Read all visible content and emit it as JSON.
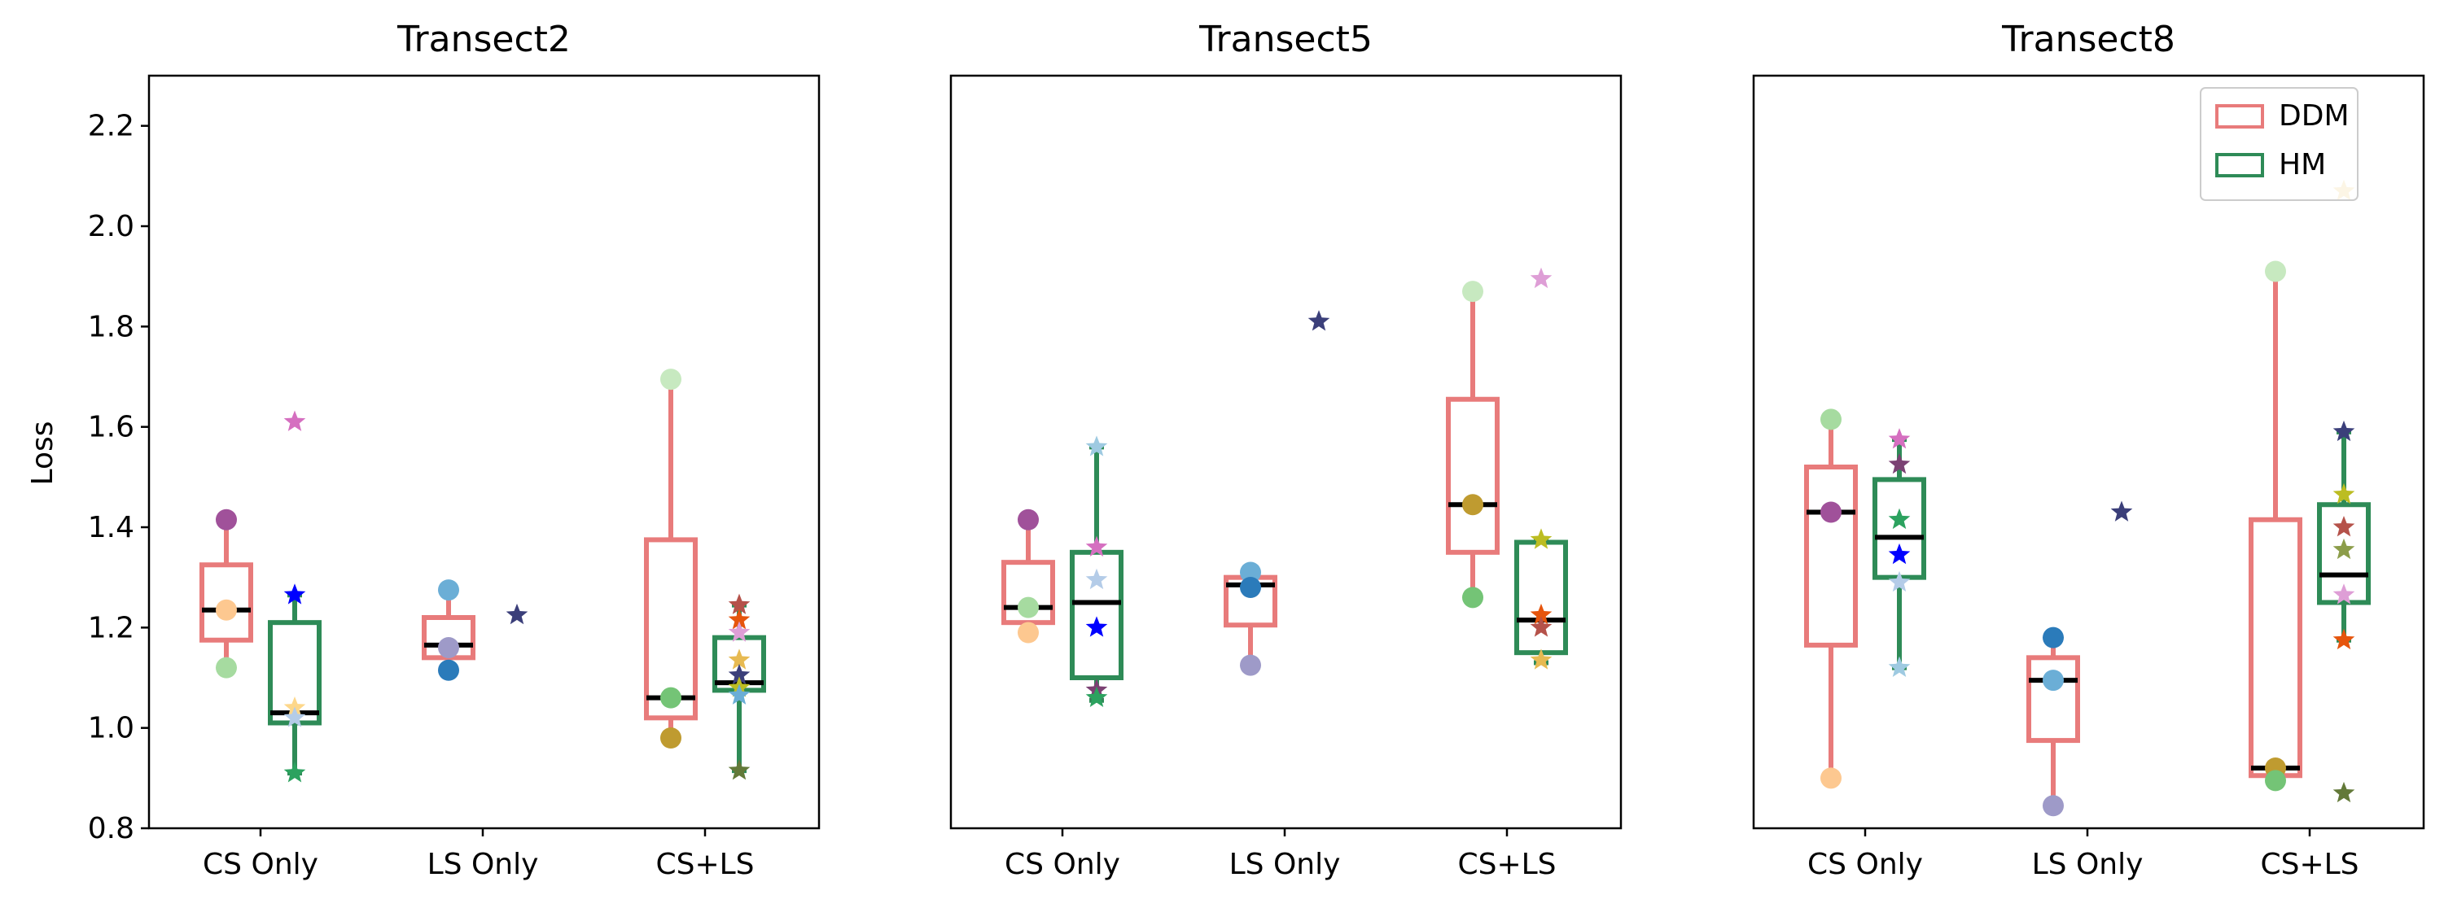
{
  "figure": {
    "ylabel": "Loss",
    "ylim": [
      0.8,
      2.3
    ],
    "yticks": [
      "0.8",
      "1.0",
      "1.2",
      "1.4",
      "1.6",
      "1.8",
      "2.0",
      "2.2"
    ],
    "categories": [
      "CS Only",
      "LS Only",
      "CS+LS"
    ]
  },
  "legend": {
    "position": "upper-right",
    "items": [
      {
        "label": "DDM",
        "color": "#e87b7b"
      },
      {
        "label": "HM",
        "color": "#2e8b57"
      }
    ]
  },
  "chart_data": [
    {
      "type": "box",
      "title": "Transect2",
      "categories": [
        "CS Only",
        "LS Only",
        "CS+LS"
      ],
      "ylim": [
        0.8,
        2.3
      ],
      "series": [
        {
          "name": "DDM",
          "color": "#e87b7b",
          "boxes": [
            {
              "category": "CS Only",
              "whislo": 1.12,
              "q1": 1.175,
              "med": 1.235,
              "q3": 1.325,
              "whishi": 1.415
            },
            {
              "category": "LS Only",
              "whislo": 1.12,
              "q1": 1.14,
              "med": 1.165,
              "q3": 1.22,
              "whishi": 1.275
            },
            {
              "category": "CS+LS",
              "whislo": 0.98,
              "q1": 1.02,
              "med": 1.06,
              "q3": 1.375,
              "whishi": 1.695
            }
          ]
        },
        {
          "name": "HM",
          "color": "#2e8b57",
          "boxes": [
            {
              "category": "CS Only",
              "whislo": 0.91,
              "q1": 1.01,
              "med": 1.03,
              "q3": 1.21,
              "whishi": 1.265
            },
            {
              "category": "CS+LS",
              "whislo": 0.915,
              "q1": 1.075,
              "med": 1.09,
              "q3": 1.18,
              "whishi": 1.245
            }
          ]
        }
      ],
      "points": [
        {
          "category": "CS Only",
          "series": "DDM",
          "values": [
            1.415,
            1.235,
            1.12
          ],
          "colors": [
            "#a0519a",
            "#fdc890",
            "#a6dba0"
          ],
          "marker": "circle"
        },
        {
          "category": "CS Only",
          "series": "HM",
          "values": [
            1.61,
            1.265,
            1.04,
            1.02,
            0.91
          ],
          "colors": [
            "#d56fc0",
            "#0000ff",
            "#fdd78a",
            "#b4cce8",
            "#2ca25f"
          ],
          "marker": "star"
        },
        {
          "category": "LS Only",
          "series": "DDM",
          "values": [
            1.275,
            1.16,
            1.115
          ],
          "colors": [
            "#6baed6",
            "#9e9ac8",
            "#2b7bba"
          ],
          "marker": "circle"
        },
        {
          "category": "LS Only",
          "series": "HM",
          "values": [
            1.225
          ],
          "colors": [
            "#3b3f7a"
          ],
          "marker": "star"
        },
        {
          "category": "CS+LS",
          "series": "DDM",
          "values": [
            1.695,
            1.06,
            0.98
          ],
          "colors": [
            "#c7e9c0",
            "#74c476",
            "#bf9b30"
          ],
          "marker": "circle"
        },
        {
          "category": "CS+LS",
          "series": "HM",
          "values": [
            1.245,
            1.215,
            1.19,
            1.135,
            1.105,
            1.08,
            1.065,
            0.915
          ],
          "colors": [
            "#b5524a",
            "#e6550d",
            "#de9ed6",
            "#e7ba52",
            "#3b3f7a",
            "#bcbd22",
            "#6baed6",
            "#637939"
          ],
          "marker": "star"
        }
      ]
    },
    {
      "type": "box",
      "title": "Transect5",
      "categories": [
        "CS Only",
        "LS Only",
        "CS+LS"
      ],
      "ylim": [
        0.8,
        2.3
      ],
      "series": [
        {
          "name": "DDM",
          "color": "#e87b7b",
          "boxes": [
            {
              "category": "CS Only",
              "whislo": 1.19,
              "q1": 1.21,
              "med": 1.24,
              "q3": 1.33,
              "whishi": 1.415
            },
            {
              "category": "LS Only",
              "whislo": 1.125,
              "q1": 1.205,
              "med": 1.285,
              "q3": 1.3,
              "whishi": 1.31
            },
            {
              "category": "CS+LS",
              "whislo": 1.26,
              "q1": 1.35,
              "med": 1.445,
              "q3": 1.655,
              "whishi": 1.87
            }
          ]
        },
        {
          "name": "HM",
          "color": "#2e8b57",
          "boxes": [
            {
              "category": "CS Only",
              "whislo": 1.055,
              "q1": 1.1,
              "med": 1.25,
              "q3": 1.35,
              "whishi": 1.56
            },
            {
              "category": "CS+LS",
              "whislo": 1.13,
              "q1": 1.15,
              "med": 1.215,
              "q3": 1.37,
              "whishi": 1.375
            }
          ]
        }
      ],
      "points": [
        {
          "category": "CS Only",
          "series": "DDM",
          "values": [
            1.415,
            1.24,
            1.19
          ],
          "colors": [
            "#a0519a",
            "#a6dba0",
            "#fdc890"
          ],
          "marker": "circle"
        },
        {
          "category": "CS Only",
          "series": "HM",
          "values": [
            1.56,
            1.36,
            1.295,
            1.2,
            1.075,
            1.06
          ],
          "colors": [
            "#9ecae1",
            "#d56fc0",
            "#b4cce8",
            "#0000ff",
            "#7b4173",
            "#2ca25f"
          ],
          "marker": "star"
        },
        {
          "category": "LS Only",
          "series": "DDM",
          "values": [
            1.31,
            1.28,
            1.125
          ],
          "colors": [
            "#6baed6",
            "#2b7bba",
            "#9e9ac8"
          ],
          "marker": "circle"
        },
        {
          "category": "LS Only",
          "series": "HM",
          "values": [
            1.81
          ],
          "colors": [
            "#3b3f7a"
          ],
          "marker": "star"
        },
        {
          "category": "CS+LS",
          "series": "DDM",
          "values": [
            1.87,
            1.445,
            1.26
          ],
          "colors": [
            "#c7e9c0",
            "#bf9b30",
            "#74c476"
          ],
          "marker": "circle"
        },
        {
          "category": "CS+LS",
          "series": "HM",
          "values": [
            1.895,
            1.375,
            1.225,
            1.2,
            1.135
          ],
          "colors": [
            "#de9ed6",
            "#bcbd22",
            "#e6550d",
            "#b5524a",
            "#e7ba52"
          ],
          "marker": "star"
        }
      ]
    },
    {
      "type": "box",
      "title": "Transect8",
      "categories": [
        "CS Only",
        "LS Only",
        "CS+LS"
      ],
      "ylim": [
        0.8,
        2.3
      ],
      "series": [
        {
          "name": "DDM",
          "color": "#e87b7b",
          "boxes": [
            {
              "category": "CS Only",
              "whislo": 0.9,
              "q1": 1.165,
              "med": 1.43,
              "q3": 1.52,
              "whishi": 1.615
            },
            {
              "category": "LS Only",
              "whislo": 0.845,
              "q1": 0.975,
              "med": 1.095,
              "q3": 1.14,
              "whishi": 1.18
            },
            {
              "category": "CS+LS",
              "whislo": 0.895,
              "q1": 0.905,
              "med": 0.92,
              "q3": 1.415,
              "whishi": 1.91
            }
          ]
        },
        {
          "name": "HM",
          "color": "#2e8b57",
          "boxes": [
            {
              "category": "CS Only",
              "whislo": 1.12,
              "q1": 1.3,
              "med": 1.38,
              "q3": 1.495,
              "whishi": 1.575
            },
            {
              "category": "CS+LS",
              "whislo": 1.175,
              "q1": 1.25,
              "med": 1.305,
              "q3": 1.445,
              "whishi": 1.59
            }
          ]
        }
      ],
      "points": [
        {
          "category": "CS Only",
          "series": "DDM",
          "values": [
            1.615,
            1.43,
            0.9
          ],
          "colors": [
            "#a6dba0",
            "#a0519a",
            "#fdc890"
          ],
          "marker": "circle"
        },
        {
          "category": "CS Only",
          "series": "HM",
          "values": [
            1.575,
            1.525,
            1.415,
            1.345,
            1.29,
            1.12
          ],
          "colors": [
            "#d56fc0",
            "#7b4173",
            "#2ca25f",
            "#0000ff",
            "#b4cce8",
            "#9ecae1"
          ],
          "marker": "star"
        },
        {
          "category": "LS Only",
          "series": "DDM",
          "values": [
            1.18,
            1.095,
            0.845
          ],
          "colors": [
            "#2b7bba",
            "#6baed6",
            "#9e9ac8"
          ],
          "marker": "circle"
        },
        {
          "category": "LS Only",
          "series": "HM",
          "values": [
            1.43
          ],
          "colors": [
            "#3b3f7a"
          ],
          "marker": "star"
        },
        {
          "category": "CS+LS",
          "series": "DDM",
          "values": [
            1.91,
            0.92,
            0.895
          ],
          "colors": [
            "#c7e9c0",
            "#bf9b30",
            "#74c476"
          ],
          "marker": "circle"
        },
        {
          "category": "CS+LS",
          "series": "HM",
          "values": [
            2.07,
            1.59,
            1.465,
            1.4,
            1.355,
            1.265,
            1.175,
            0.87
          ],
          "colors": [
            "#e7ba52",
            "#3b3f7a",
            "#bcbd22",
            "#b5524a",
            "#8c9d4a",
            "#de9ed6",
            "#e6550d",
            "#637939"
          ],
          "marker": "star"
        }
      ]
    }
  ]
}
